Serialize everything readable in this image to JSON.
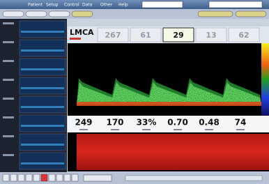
{
  "menu": [
    "Patient",
    "Setup",
    "Control",
    "Data",
    "Other",
    "Help"
  ],
  "vessel": "LMCA",
  "header_values": [
    "267",
    "61",
    "29",
    "13",
    "62"
  ],
  "metrics": [
    "249",
    "170",
    "33%",
    "0.70",
    "0.48",
    "74"
  ]
}
